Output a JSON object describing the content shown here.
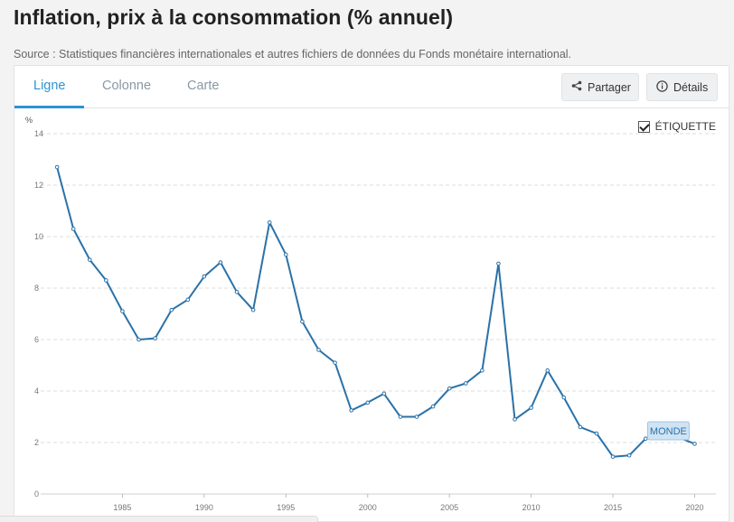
{
  "header": {
    "title": "Inflation, prix à la consommation (% annuel)",
    "source": "Source : Statistiques financières internationales et autres fichiers de données du Fonds monétaire international."
  },
  "tabs": [
    {
      "label": "Ligne",
      "active": true
    },
    {
      "label": "Colonne",
      "active": false
    },
    {
      "label": "Carte",
      "active": false
    }
  ],
  "toolbar": {
    "share_label": "Partager",
    "share_icon": "share-icon",
    "details_label": "Détails",
    "details_icon": "info-icon"
  },
  "label_toggle": {
    "label": "ÉTIQUETTE",
    "checked": true
  },
  "colors": {
    "accent": "#2b94d4",
    "line": "#2a72a8",
    "series_label_bg": "#cfe3f3"
  },
  "chart_data": {
    "type": "line",
    "title": "",
    "xlabel": "",
    "ylabel": "%",
    "ylim": [
      0,
      14
    ],
    "yticks": [
      0,
      2,
      4,
      6,
      8,
      10,
      12,
      14
    ],
    "xticks": [
      1985,
      1990,
      1995,
      2000,
      2005,
      2010,
      2015,
      2020
    ],
    "grid": true,
    "series": [
      {
        "name": "MONDE",
        "x": [
          1981,
          1982,
          1983,
          1984,
          1985,
          1986,
          1987,
          1988,
          1989,
          1990,
          1991,
          1992,
          1993,
          1994,
          1995,
          1996,
          1997,
          1998,
          1999,
          2000,
          2001,
          2002,
          2003,
          2004,
          2005,
          2006,
          2007,
          2008,
          2009,
          2010,
          2011,
          2012,
          2013,
          2014,
          2015,
          2016,
          2017,
          2018,
          2019,
          2020
        ],
        "values": [
          12.7,
          10.3,
          9.1,
          8.3,
          7.1,
          6.0,
          6.05,
          7.15,
          7.55,
          8.45,
          9.0,
          7.85,
          7.15,
          10.55,
          9.3,
          6.7,
          5.6,
          5.1,
          3.25,
          3.55,
          3.9,
          3.0,
          3.0,
          3.4,
          4.1,
          4.3,
          4.8,
          8.95,
          2.9,
          3.35,
          4.8,
          3.75,
          2.6,
          2.35,
          1.45,
          1.5,
          2.15,
          2.4,
          2.2,
          1.95
        ]
      }
    ]
  }
}
